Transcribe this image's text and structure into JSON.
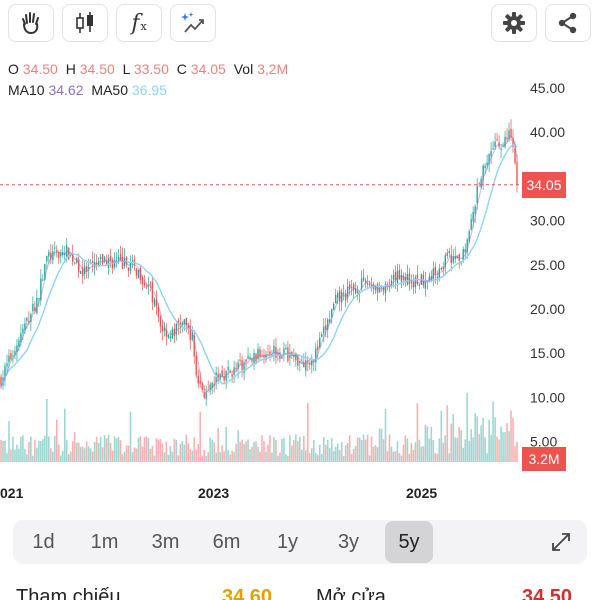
{
  "toolbar": {
    "tools": [
      "hand-icon",
      "candlestick-icon",
      "function-icon",
      "magic-draw-icon"
    ],
    "fx_glyph": "f",
    "fx_sub": "x",
    "actions": [
      "gear-icon",
      "share-icon"
    ]
  },
  "ohlc": {
    "o_label": "O",
    "o_value": "34.50",
    "h_label": "H",
    "h_value": "34.50",
    "l_label": "L",
    "l_value": "33.50",
    "c_label": "C",
    "c_value": "34.05",
    "vol_label": "Vol",
    "vol_value": "3,2M"
  },
  "ma": {
    "ma10_label": "MA10",
    "ma10_value": "34.62",
    "ma50_label": "MA50",
    "ma50_value": "36.95"
  },
  "colors": {
    "up": "#26a69a",
    "down": "#ef5350",
    "ma10": "#8e6fc4",
    "ma50": "#8fd3f4",
    "price_line": "#ef5350"
  },
  "chart_data": {
    "type": "candlestick",
    "y_ticks": [
      "45.00",
      "40.00",
      "35.00",
      "30.00",
      "25.00",
      "20.00",
      "15.00",
      "10.00",
      "5.00"
    ],
    "x_ticks": [
      "021",
      "2023",
      "2025"
    ],
    "ylim": [
      3,
      46
    ],
    "current_price": 34.05,
    "current_price_label": "34.05",
    "current_volume_label": "3.2M",
    "price_path": [
      [
        0,
        12
      ],
      [
        0.03,
        16
      ],
      [
        0.07,
        21
      ],
      [
        0.09,
        26
      ],
      [
        0.13,
        26.5
      ],
      [
        0.16,
        24
      ],
      [
        0.2,
        25.5
      ],
      [
        0.25,
        25
      ],
      [
        0.27,
        24
      ],
      [
        0.29,
        22
      ],
      [
        0.31,
        18
      ],
      [
        0.33,
        17
      ],
      [
        0.35,
        18.5
      ],
      [
        0.37,
        17
      ],
      [
        0.38,
        12
      ],
      [
        0.4,
        10
      ],
      [
        0.42,
        12.5
      ],
      [
        0.45,
        13
      ],
      [
        0.49,
        14.5
      ],
      [
        0.52,
        15.5
      ],
      [
        0.55,
        15
      ],
      [
        0.59,
        14
      ],
      [
        0.61,
        15
      ],
      [
        0.65,
        21
      ],
      [
        0.69,
        22.5
      ],
      [
        0.71,
        23
      ],
      [
        0.75,
        22
      ],
      [
        0.77,
        24
      ],
      [
        0.8,
        23
      ],
      [
        0.84,
        24
      ],
      [
        0.87,
        26
      ],
      [
        0.89,
        25
      ],
      [
        0.91,
        30
      ],
      [
        0.93,
        35
      ],
      [
        0.95,
        38
      ],
      [
        0.97,
        38.5
      ],
      [
        0.99,
        40
      ],
      [
        1.0,
        34
      ]
    ]
  },
  "periods": [
    "1d",
    "1m",
    "3m",
    "6m",
    "1y",
    "3y",
    "5y"
  ],
  "active_period": "5y",
  "info": {
    "ref_label": "Tham chiếu",
    "ref_value": "34.60",
    "open_label": "Mở cửa",
    "open_value": "34.50"
  }
}
